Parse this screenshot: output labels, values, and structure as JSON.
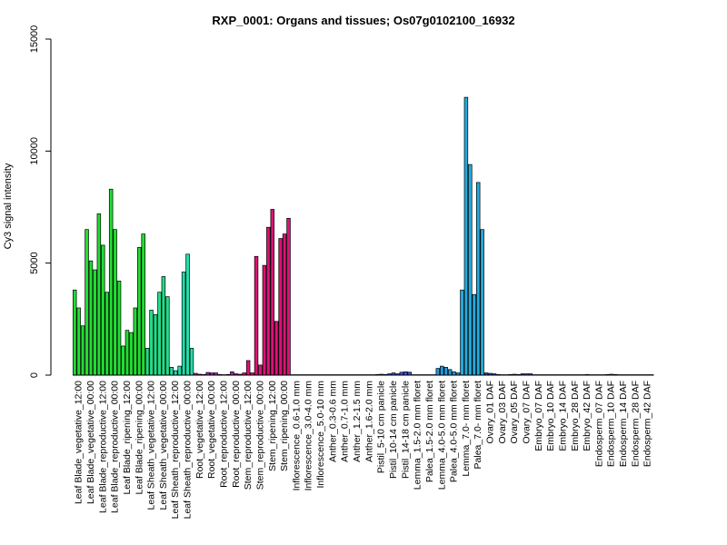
{
  "chart_data": {
    "type": "bar",
    "title": "RXP_0001: Organs and tissues; Os07g0102100_16932",
    "ylabel": "Cy3 signal intensity",
    "xlabel": "",
    "ylim": [
      0,
      15000
    ],
    "yticks": [
      0,
      5000,
      10000,
      15000
    ],
    "ytick_labels": [
      "0",
      "5000",
      "10000",
      "15000"
    ],
    "grid": false,
    "legend": "none",
    "bar_width": 0.85,
    "groups": [
      {
        "label": "Leaf Blade_vegetative_12:00",
        "color": "#22dd33",
        "values": [
          3800,
          3000,
          2200
        ]
      },
      {
        "label": "Leaf Blade_vegetative_00:00",
        "color": "#22dd33",
        "values": [
          6500,
          5100,
          4700
        ]
      },
      {
        "label": "Leaf Blade_reproductive_12:00",
        "color": "#22dd33",
        "values": [
          7200,
          5800,
          3700
        ]
      },
      {
        "label": "Leaf Blade_reproductive_00:00",
        "color": "#22dd33",
        "values": [
          8300,
          6500,
          4200
        ]
      },
      {
        "label": "Leaf Blade_ripening_12:00",
        "color": "#22dd33",
        "values": [
          1300,
          2000,
          1900
        ]
      },
      {
        "label": "Leaf Blade_ripening_00:00",
        "color": "#22dd33",
        "values": [
          3000,
          5700,
          6300
        ]
      },
      {
        "label": "Leaf Sheath_vegetative_12:00",
        "color": "#22dd88",
        "values": [
          1200,
          2900,
          2700
        ]
      },
      {
        "label": "Leaf Sheath_vegetative_00:00",
        "color": "#22dd88",
        "values": [
          3700,
          4400,
          3500
        ]
      },
      {
        "label": "Leaf Sheath_reproductive_12:00",
        "color": "#22ddaa",
        "values": [
          350,
          200,
          400
        ]
      },
      {
        "label": "Leaf Sheath_reproductive_00:00",
        "color": "#22ddaa",
        "values": [
          4600,
          5400,
          1200
        ]
      },
      {
        "label": "Root_vegetative_12:00",
        "color": "#aa22bb",
        "values": [
          80,
          40,
          30
        ]
      },
      {
        "label": "Root_vegetative_00:00",
        "color": "#aa22bb",
        "values": [
          120,
          100,
          100
        ]
      },
      {
        "label": "Root_reproductive_12:00",
        "color": "#aa22bb",
        "values": [
          30,
          20,
          30
        ]
      },
      {
        "label": "Root_reproductive_00:00",
        "color": "#aa22bb",
        "values": [
          150,
          60,
          40
        ]
      },
      {
        "label": "Stem_reproductive_12:00",
        "color": "#dd1177",
        "values": [
          100,
          650,
          100
        ]
      },
      {
        "label": "Stem_reproductive_00:00",
        "color": "#dd1177",
        "values": [
          5300,
          450,
          4900
        ]
      },
      {
        "label": "Stem_ripening_12:00",
        "color": "#dd1177",
        "values": [
          6600,
          7400,
          2400
        ]
      },
      {
        "label": "Stem_ripening_00:00",
        "color": "#dd1177",
        "values": [
          6100,
          6300,
          7000
        ]
      },
      {
        "label": "Inflorescence_0.6-1.0 mm",
        "color": "#4455dd",
        "values": [
          20,
          20,
          20
        ]
      },
      {
        "label": "Inflorescence_3.0-4.0 mm",
        "color": "#4455dd",
        "values": [
          20,
          20,
          20
        ]
      },
      {
        "label": "Inflorescence_5.0-10 mm",
        "color": "#4455dd",
        "values": [
          20,
          20,
          20
        ]
      },
      {
        "label": "Anther_0.3-0.6 mm",
        "color": "#4455dd",
        "values": [
          20,
          20,
          20
        ]
      },
      {
        "label": "Anther_0.7-1.0 mm",
        "color": "#4455dd",
        "values": [
          20,
          20,
          20
        ]
      },
      {
        "label": "Anther_1.2-1.5 mm",
        "color": "#4455dd",
        "values": [
          20,
          20,
          20
        ]
      },
      {
        "label": "Anther_1.6-2.0 mm",
        "color": "#4455dd",
        "values": [
          20,
          20,
          20
        ]
      },
      {
        "label": "Pistil_5-10 cm panicle",
        "color": "#4455dd",
        "values": [
          30,
          40,
          30
        ]
      },
      {
        "label": "Pistil_10-14 cm panicle",
        "color": "#4455dd",
        "values": [
          60,
          100,
          60
        ]
      },
      {
        "label": "Pistil_14-18 cm panicle",
        "color": "#4455dd",
        "values": [
          130,
          150,
          130
        ]
      },
      {
        "label": "Lemma_1.5-2.0 mm floret",
        "color": "#2299dd",
        "values": [
          20,
          20,
          20
        ]
      },
      {
        "label": "Palea_1.5-2.0 mm floret",
        "color": "#2299dd",
        "values": [
          20,
          20,
          20
        ]
      },
      {
        "label": "Lemma_4.0-5.0 mm floret",
        "color": "#2299dd",
        "values": [
          300,
          400,
          350
        ]
      },
      {
        "label": "Palea_4.0-5.0 mm floret",
        "color": "#2299dd",
        "values": [
          250,
          150,
          100
        ]
      },
      {
        "label": "Lemma_7.0- mm floret",
        "color": "#22aadd",
        "values": [
          3800,
          12400,
          9400
        ]
      },
      {
        "label": "Palea_7.0- mm floret",
        "color": "#22aadd",
        "values": [
          3600,
          8600,
          6500
        ]
      },
      {
        "label": "Ovary_01 DAF",
        "color": "#3344cc",
        "values": [
          100,
          80,
          60
        ]
      },
      {
        "label": "Ovary_03 DAF",
        "color": "#3344cc",
        "values": [
          30,
          20,
          20
        ]
      },
      {
        "label": "Ovary_05 DAF",
        "color": "#3344cc",
        "values": [
          30,
          40,
          30
        ]
      },
      {
        "label": "Ovary_07 DAF",
        "color": "#3344cc",
        "values": [
          60,
          60,
          60
        ]
      },
      {
        "label": "Embryo_07 DAF",
        "color": "#aa2299",
        "values": [
          20,
          20,
          20
        ]
      },
      {
        "label": "Embryo_10 DAF",
        "color": "#aa2299",
        "values": [
          20,
          20,
          20
        ]
      },
      {
        "label": "Embryo_14 DAF",
        "color": "#aa2299",
        "values": [
          20,
          20,
          20
        ]
      },
      {
        "label": "Embryo_28 DAF",
        "color": "#aa2299",
        "values": [
          20,
          20,
          20
        ]
      },
      {
        "label": "Embryo_42 DAF",
        "color": "#aa2299",
        "values": [
          20,
          30,
          20
        ]
      },
      {
        "label": "Endosperm_07 DAF",
        "color": "#dd6611",
        "values": [
          20,
          20,
          20
        ]
      },
      {
        "label": "Endosperm_10 DAF",
        "color": "#dd6611",
        "values": [
          30,
          40,
          30
        ]
      },
      {
        "label": "Endosperm_14 DAF",
        "color": "#dd6611",
        "values": [
          20,
          20,
          20
        ]
      },
      {
        "label": "Endosperm_28 DAF",
        "color": "#dd6611",
        "values": [
          20,
          20,
          20
        ]
      },
      {
        "label": "Endosperm_42 DAF",
        "color": "#dd6611",
        "values": [
          20,
          20,
          20
        ]
      }
    ]
  }
}
